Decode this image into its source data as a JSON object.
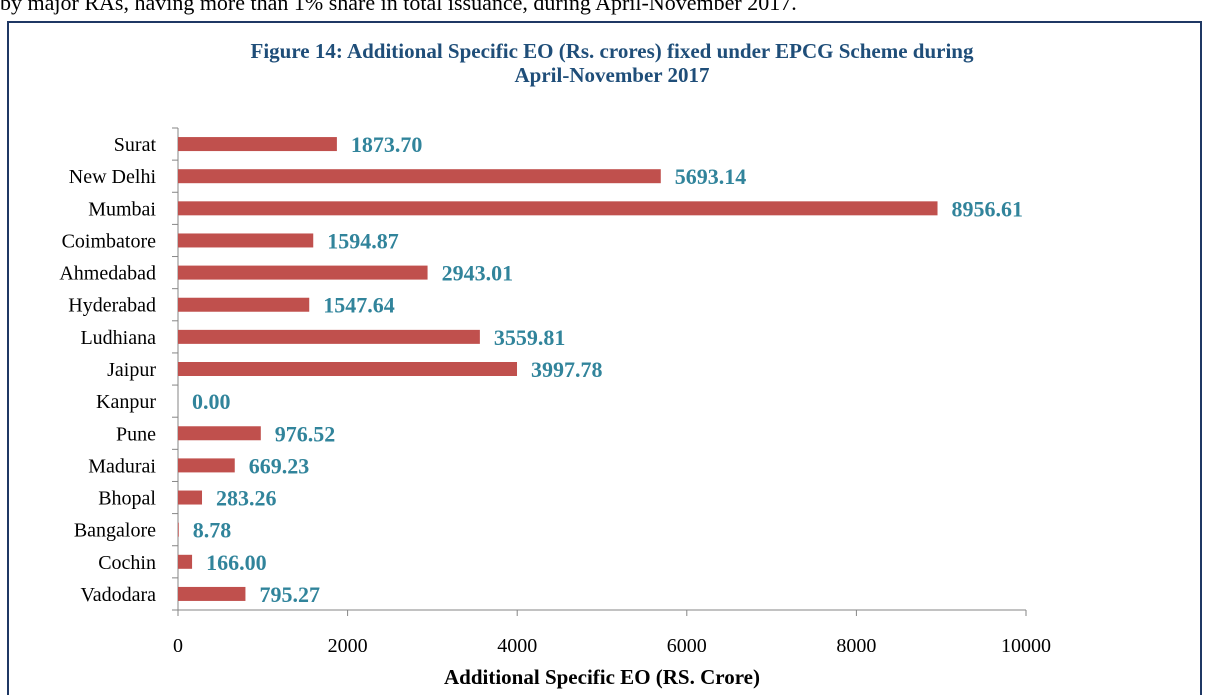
{
  "intro_text": "by major RAs, having more than 1% share in total issuance, during April-November 2017.",
  "chart_data": {
    "type": "bar",
    "orientation": "horizontal",
    "title": "Figure 14: Additional Specific EO (Rs. crores) fixed under EPCG Scheme during",
    "subtitle": "April-November 2017",
    "xlabel": "Additional Specific EO (RS. Crore)",
    "categories": [
      "Surat",
      "New Delhi",
      "Mumbai",
      "Coimbatore",
      "Ahmedabad",
      "Hyderabad",
      "Ludhiana",
      "Jaipur",
      "Kanpur",
      "Pune",
      "Madurai",
      "Bhopal",
      "Bangalore",
      "Cochin",
      "Vadodara"
    ],
    "values": [
      1873.7,
      5693.14,
      8956.61,
      1594.87,
      2943.01,
      1547.64,
      3559.81,
      3997.78,
      0,
      976.52,
      669.23,
      283.26,
      8.78,
      166,
      795.27
    ],
    "value_labels": [
      "1873.70",
      "5693.14",
      "8956.61",
      "1594.87",
      "2943.01",
      "1547.64",
      "3559.81",
      "3997.78",
      "0.00",
      "976.52",
      "669.23",
      "283.26",
      "8.78",
      "166.00",
      "795.27"
    ],
    "color": "#c0504d",
    "label_color": "#31849b",
    "xlim": [
      0,
      10000
    ],
    "xticks": [
      0,
      2000,
      4000,
      6000,
      8000,
      10000
    ],
    "grid": false
  }
}
